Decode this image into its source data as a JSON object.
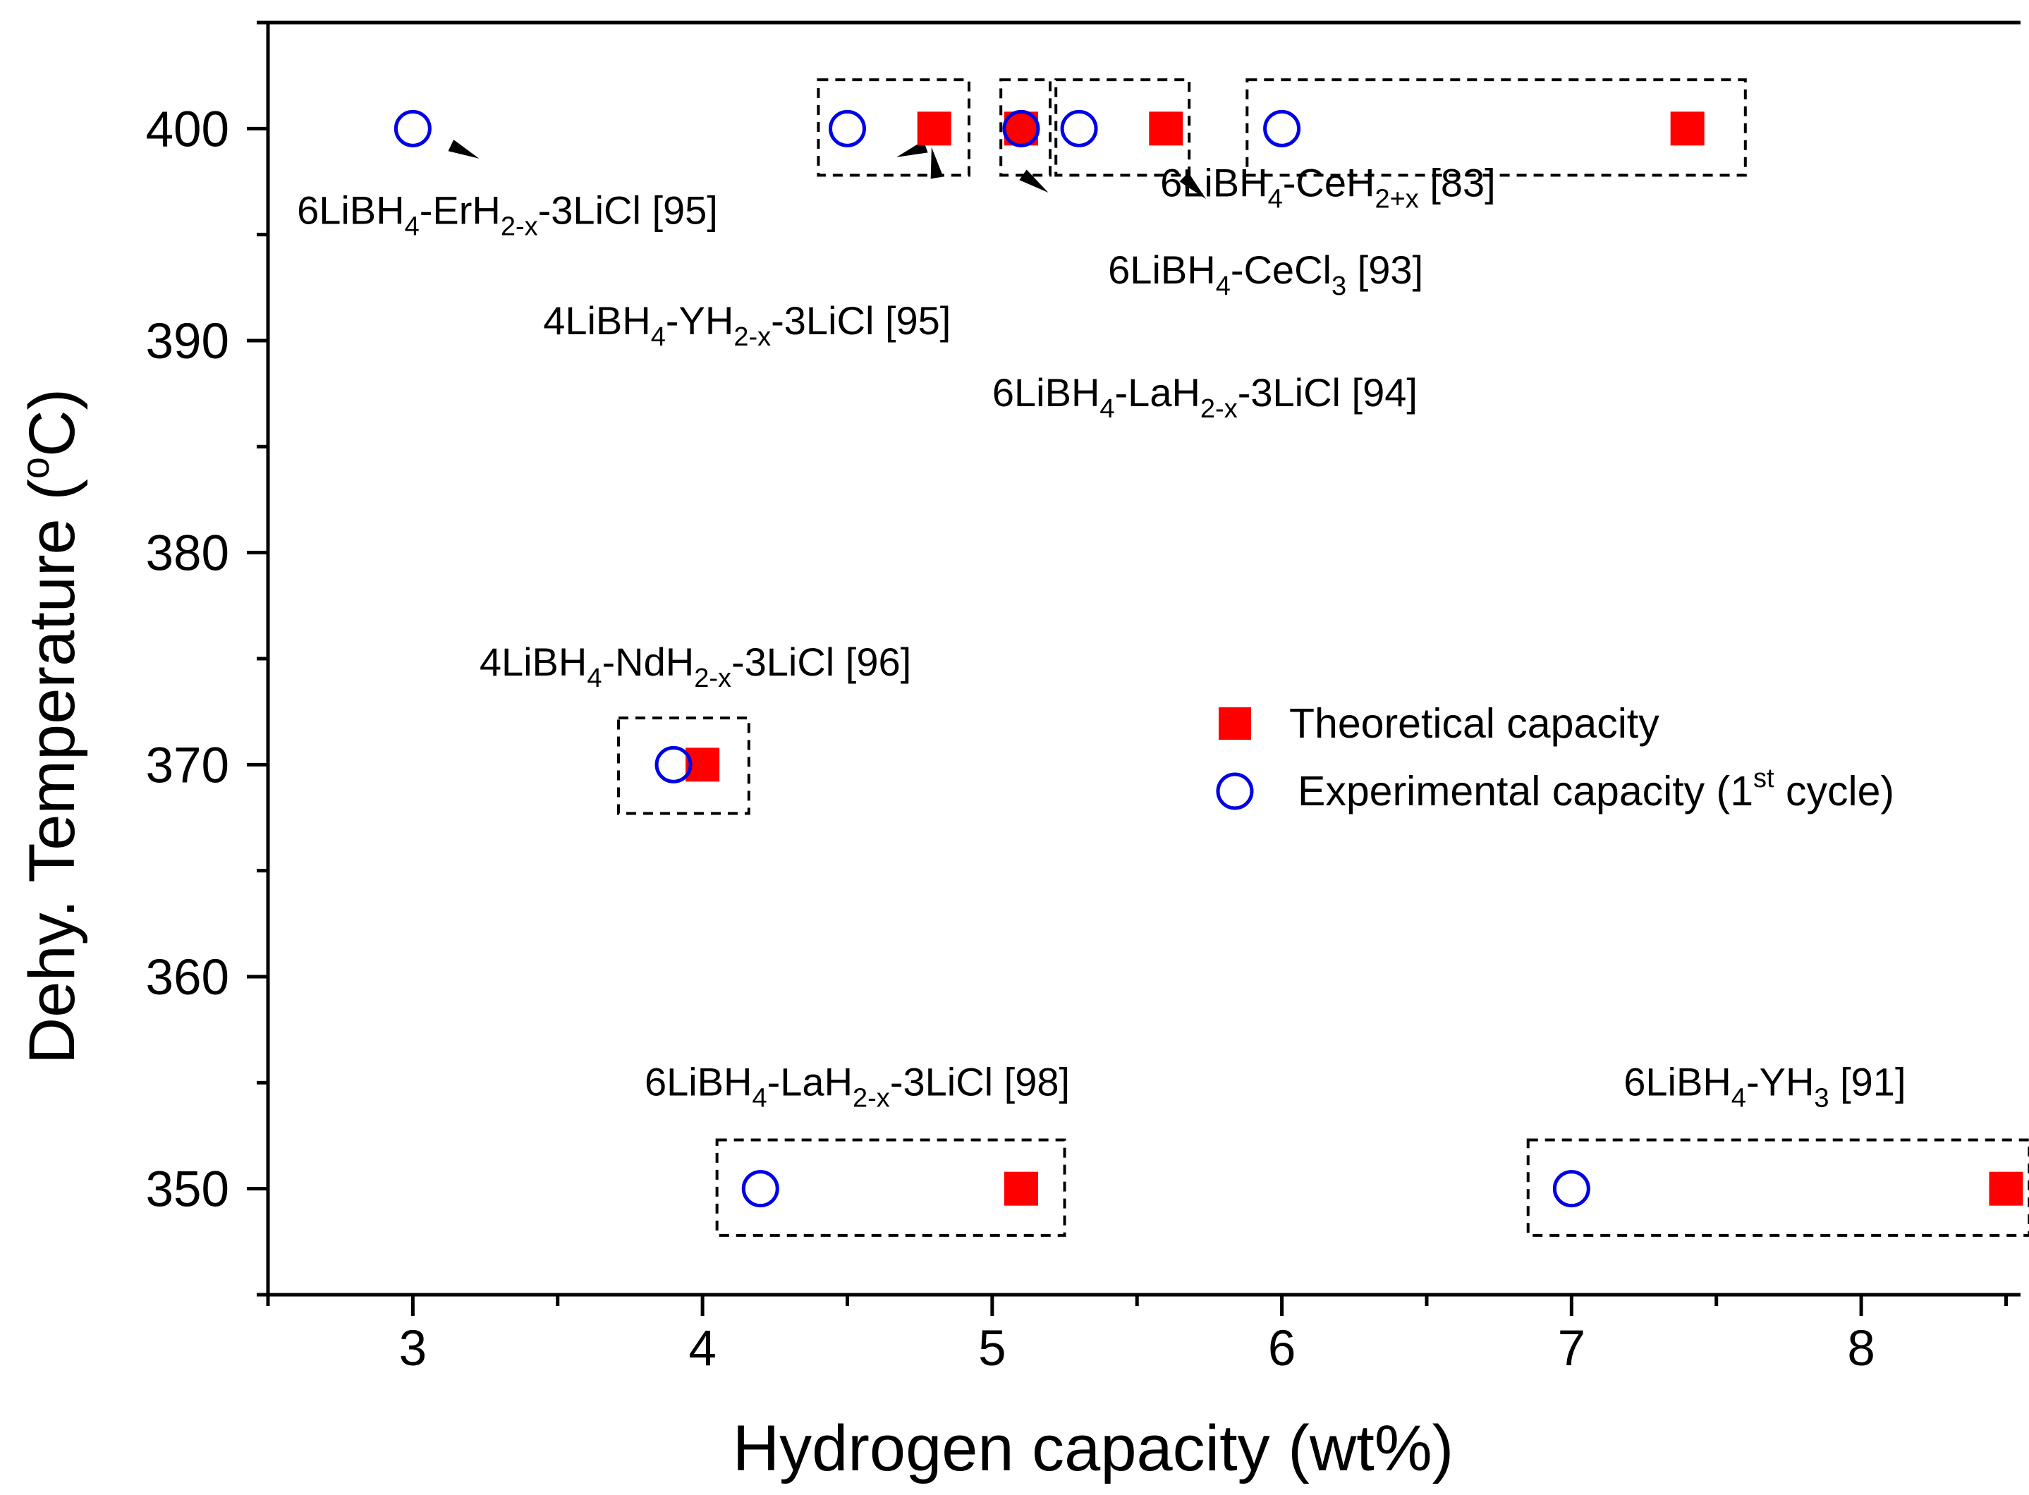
{
  "chart_data": {
    "type": "scatter",
    "xlabel": "Hydrogen capacity (wt%)",
    "ylabel_text": "Dehy. Temperature (",
    "ylabel_sup": "o",
    "ylabel_end": "C)",
    "xlim": [
      2.5,
      8.55
    ],
    "ylim": [
      345,
      405
    ],
    "x_ticks": [
      3,
      4,
      5,
      6,
      7,
      8
    ],
    "y_ticks": [
      350,
      360,
      370,
      380,
      390,
      400
    ],
    "colors": {
      "theoretical": "#ff0000",
      "experimental": "#0000e6",
      "axis": "#000000",
      "box": "#000000"
    },
    "series": [
      {
        "name": "Theoretical capacity",
        "marker": "filled-square",
        "points": [
          {
            "x": 4.8,
            "y": 400
          },
          {
            "x": 5.1,
            "y": 400
          },
          {
            "x": 5.6,
            "y": 400
          },
          {
            "x": 7.4,
            "y": 400
          },
          {
            "x": 4.0,
            "y": 370
          },
          {
            "x": 5.1,
            "y": 350
          },
          {
            "x": 8.5,
            "y": 350
          }
        ]
      },
      {
        "name": "Experimental capacity (1st cycle)",
        "marker": "open-circle",
        "points": [
          {
            "x": 3.0,
            "y": 400
          },
          {
            "x": 4.5,
            "y": 400
          },
          {
            "x": 5.1,
            "y": 400
          },
          {
            "x": 5.3,
            "y": 400
          },
          {
            "x": 6.0,
            "y": 400
          },
          {
            "x": 3.9,
            "y": 370
          },
          {
            "x": 4.2,
            "y": 350
          },
          {
            "x": 7.0,
            "y": 350
          }
        ]
      }
    ],
    "groups": [
      {
        "x0": 4.4,
        "x1": 4.92,
        "y0": 397.8,
        "y1": 402.3
      },
      {
        "x0": 5.03,
        "x1": 5.2,
        "y0": 397.8,
        "y1": 402.3
      },
      {
        "x0": 5.22,
        "x1": 5.68,
        "y0": 397.8,
        "y1": 402.3
      },
      {
        "x0": 5.88,
        "x1": 7.6,
        "y0": 397.8,
        "y1": 402.3
      },
      {
        "x0": 3.71,
        "x1": 4.16,
        "y0": 367.7,
        "y1": 372.2
      },
      {
        "x0": 4.05,
        "x1": 5.25,
        "y0": 347.8,
        "y1": 352.3
      },
      {
        "x0": 6.85,
        "x1": 8.58,
        "y0": 347.8,
        "y1": 352.3
      }
    ],
    "pointers": [
      {
        "x": 3.18,
        "y": 398.9,
        "angle": 25
      },
      {
        "x": 4.72,
        "y": 398.9,
        "angle": 160
      },
      {
        "x": 4.8,
        "y": 398.4,
        "angle": 260
      },
      {
        "x": 5.15,
        "y": 397.4,
        "angle": 35
      },
      {
        "x": 5.7,
        "y": 397.2,
        "angle": 45
      }
    ],
    "annotations": [
      {
        "x": 2.6,
        "y": 395.5,
        "parts": [
          [
            "6LiBH",
            ""
          ],
          [
            "4",
            "sub"
          ],
          [
            "-ErH",
            ""
          ],
          [
            "2-x",
            "sub"
          ],
          [
            "-3LiCl [95]",
            ""
          ]
        ]
      },
      {
        "x": 3.45,
        "y": 390.3,
        "parts": [
          [
            "4LiBH",
            ""
          ],
          [
            "4",
            "sub"
          ],
          [
            "-YH",
            ""
          ],
          [
            "2-x",
            "sub"
          ],
          [
            "-3LiCl [95]",
            ""
          ]
        ]
      },
      {
        "x": 5.58,
        "y": 396.8,
        "parts": [
          [
            "6LiBH",
            ""
          ],
          [
            "4",
            "sub"
          ],
          [
            "-CeH",
            ""
          ],
          [
            "2+x",
            "sub"
          ],
          [
            " [83]",
            ""
          ]
        ]
      },
      {
        "x": 5.4,
        "y": 392.7,
        "parts": [
          [
            "6LiBH",
            ""
          ],
          [
            "4",
            "sub"
          ],
          [
            "-CeCl",
            ""
          ],
          [
            "3",
            "sub"
          ],
          [
            " [93]",
            ""
          ]
        ]
      },
      {
        "x": 5.0,
        "y": 386.9,
        "parts": [
          [
            "6LiBH",
            ""
          ],
          [
            "4",
            "sub"
          ],
          [
            "-LaH",
            ""
          ],
          [
            "2-x",
            "sub"
          ],
          [
            "-3LiCl [94]",
            ""
          ]
        ]
      },
      {
        "x": 3.23,
        "y": 374.2,
        "parts": [
          [
            "4LiBH",
            ""
          ],
          [
            "4",
            "sub"
          ],
          [
            "-NdH",
            ""
          ],
          [
            "2-x",
            "sub"
          ],
          [
            "-3LiCl [96]",
            ""
          ]
        ]
      },
      {
        "x": 3.8,
        "y": 354.4,
        "parts": [
          [
            "6LiBH",
            ""
          ],
          [
            "4",
            "sub"
          ],
          [
            "-LaH",
            ""
          ],
          [
            "2-x",
            "sub"
          ],
          [
            "-3LiCl [98]",
            ""
          ]
        ]
      },
      {
        "x": 7.18,
        "y": 354.4,
        "parts": [
          [
            "6LiBH",
            ""
          ],
          [
            "4",
            "sub"
          ],
          [
            "-YH",
            ""
          ],
          [
            "3",
            "sub"
          ],
          [
            " [91]",
            ""
          ]
        ]
      }
    ],
    "legend": {
      "position": "center-right",
      "theoretical_label": "Theoretical capacity",
      "experimental_label_pre": "Experimental capacity (1",
      "experimental_label_sup": "st",
      "experimental_label_post": " cycle)"
    }
  }
}
